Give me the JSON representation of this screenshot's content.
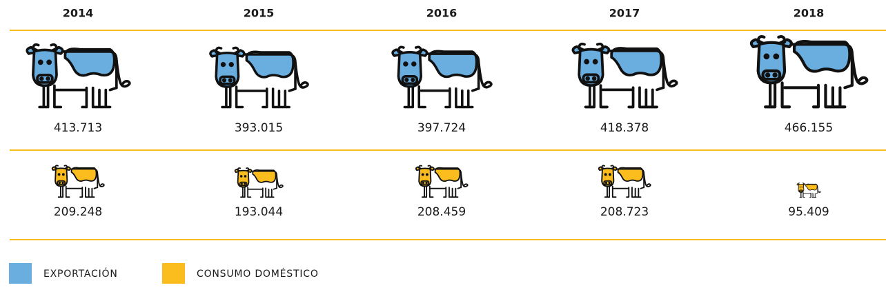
{
  "chart_data": {
    "type": "pictogram",
    "categories": [
      "2014",
      "2015",
      "2016",
      "2017",
      "2018"
    ],
    "series": [
      {
        "name": "EXPORTACIÓN",
        "color": "#6aaee0",
        "values": [
          413713,
          393015,
          397724,
          418378,
          466155
        ],
        "value_labels": [
          "413.713",
          "393.015",
          "397.724",
          "418.378",
          "466.155"
        ]
      },
      {
        "name": "CONSUMO DOMÉSTICO",
        "color": "#fbbc1e",
        "values": [
          209248,
          193044,
          208459,
          208723,
          95409
        ],
        "value_labels": [
          "209.248",
          "193.044",
          "208.459",
          "208.723",
          "95.409"
        ]
      }
    ]
  }
}
